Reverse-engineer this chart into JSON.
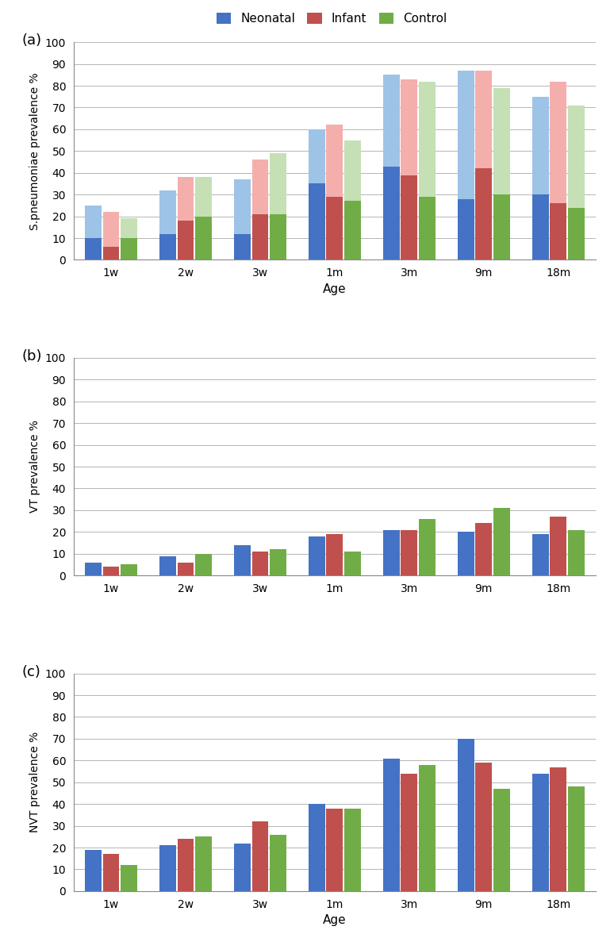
{
  "categories": [
    "1w",
    "2w",
    "3w",
    "1m",
    "3m",
    "9m",
    "18m"
  ],
  "panel_a": {
    "title": "(a)",
    "ylabel": "S.pneumoniae prevalence %",
    "neonatal_dark": [
      10,
      12,
      12,
      35,
      43,
      28,
      30
    ],
    "neonatal_light": [
      25,
      32,
      37,
      60,
      85,
      87,
      75
    ],
    "infant_dark": [
      6,
      18,
      21,
      29,
      39,
      42,
      26
    ],
    "infant_light": [
      22,
      38,
      46,
      62,
      83,
      87,
      82
    ],
    "control_dark": [
      10,
      20,
      21,
      27,
      29,
      30,
      24
    ],
    "control_light": [
      19,
      38,
      49,
      55,
      82,
      79,
      71
    ]
  },
  "panel_b": {
    "title": "(b)",
    "ylabel": "VT prevalence %",
    "neonatal": [
      6,
      9,
      14,
      18,
      21,
      20,
      19
    ],
    "infant": [
      4,
      6,
      11,
      19,
      21,
      24,
      27
    ],
    "control": [
      5,
      10,
      12,
      11,
      26,
      31,
      21
    ]
  },
  "panel_c": {
    "title": "(c)",
    "ylabel": "NVT prevalence %",
    "neonatal": [
      19,
      21,
      22,
      40,
      61,
      70,
      54
    ],
    "infant": [
      17,
      24,
      32,
      38,
      54,
      59,
      57
    ],
    "control": [
      12,
      25,
      26,
      38,
      58,
      47,
      48
    ]
  },
  "color_neonatal_dark": "#4472C4",
  "color_neonatal_light": "#9DC3E6",
  "color_infant_dark": "#C0504D",
  "color_infant_light": "#F4AFAD",
  "color_control_dark": "#70AD47",
  "color_control_light": "#C5E0B4",
  "legend_labels": [
    "Neonatal",
    "Infant",
    "Control"
  ],
  "xlabel_a": "Age",
  "xlabel_c": "Age",
  "ylim": [
    0,
    100
  ],
  "yticks": [
    0,
    10,
    20,
    30,
    40,
    50,
    60,
    70,
    80,
    90,
    100
  ]
}
